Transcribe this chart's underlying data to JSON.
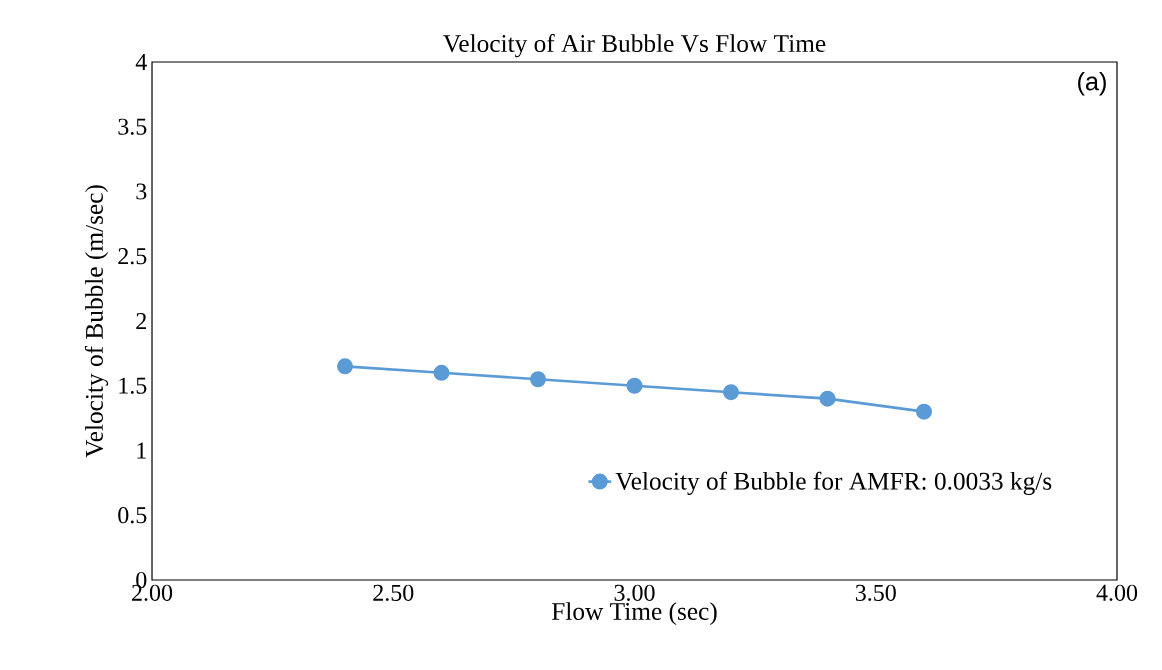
{
  "chart_data": {
    "type": "line",
    "title": "Velocity of Air Bubble Vs Flow Time",
    "xlabel": "Flow Time (sec)",
    "ylabel": "Velocity of Bubble (m/sec)",
    "x": [
      2.4,
      2.6,
      2.8,
      3.0,
      3.2,
      3.4,
      3.6
    ],
    "series": [
      {
        "name": "Velocity of Bubble for AMFR: 0.0033 kg/s",
        "color": "#5b9bd5",
        "values": [
          1.65,
          1.6,
          1.55,
          1.5,
          1.45,
          1.4,
          1.3
        ]
      }
    ],
    "xlim": [
      2,
      4
    ],
    "xticks": [
      {
        "value": 2,
        "label": "2.00"
      },
      {
        "value": 2.5,
        "label": "2.50"
      },
      {
        "value": 3,
        "label": "3.00"
      },
      {
        "value": 3.5,
        "label": "3.50"
      },
      {
        "value": 4,
        "label": "4.00"
      }
    ],
    "ylim": [
      0,
      4
    ],
    "yticks": [
      0,
      0.5,
      1,
      1.5,
      2,
      2.5,
      3,
      3.5,
      4
    ],
    "annotations": [
      "(a)"
    ],
    "legend": "bottom right",
    "marker": "circle",
    "line_style": "solid",
    "grid": false
  }
}
